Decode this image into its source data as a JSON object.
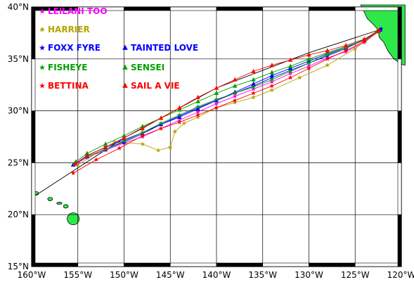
{
  "map": {
    "lon_range": [
      -160,
      -120
    ],
    "lat_range": [
      15,
      40
    ],
    "grid": true,
    "frame_style": "alternating black/white border bars",
    "land_color": "#2ee84a",
    "lat_labels": [
      {
        "lat": 40,
        "text": "40°N"
      },
      {
        "lat": 35,
        "text": "35°N"
      },
      {
        "lat": 30,
        "text": "30°N"
      },
      {
        "lat": 25,
        "text": "25°N"
      },
      {
        "lat": 20,
        "text": "20°N"
      },
      {
        "lat": 15,
        "text": "15°N"
      }
    ],
    "lon_labels": [
      {
        "lon": -160,
        "text": "160°W"
      },
      {
        "lon": -155,
        "text": "155°W"
      },
      {
        "lon": -150,
        "text": "150°W"
      },
      {
        "lon": -145,
        "text": "145°W"
      },
      {
        "lon": -140,
        "text": "140°W"
      },
      {
        "lon": -135,
        "text": "135°W"
      },
      {
        "lon": -130,
        "text": "130°W"
      },
      {
        "lon": -125,
        "text": "125°W"
      },
      {
        "lon": -120,
        "text": "120°W"
      }
    ]
  },
  "legend": [
    {
      "name": "LEILANI TOO",
      "color": "#ff00ff",
      "marker": "star"
    },
    {
      "name": "HARRIER",
      "color": "#b8a200",
      "marker": "star"
    },
    {
      "name": "FOXX FYRE",
      "color": "#0000ff",
      "marker": "star"
    },
    {
      "name": "TAINTED LOVE",
      "color": "#0000ff",
      "marker": "triangle"
    },
    {
      "name": "FISHEYE",
      "color": "#00a000",
      "marker": "star"
    },
    {
      "name": "SENSEI",
      "color": "#00a000",
      "marker": "triangle"
    },
    {
      "name": "BETTINA",
      "color": "#ff0000",
      "marker": "star"
    },
    {
      "name": "SAIL A VIE",
      "color": "#ff0000",
      "marker": "triangle"
    }
  ],
  "great_circle_color": "#000000",
  "chart_data": {
    "type": "scatter",
    "projection": "equirectangular",
    "xlim": [
      -160,
      -120
    ],
    "ylim": [
      15,
      40
    ],
    "great_circle": {
      "lon": [
        -122.4,
        -130,
        -140,
        -150,
        -159.5
      ],
      "lat": [
        37.8,
        35.6,
        32.2,
        27.4,
        21.9
      ]
    },
    "series": [
      {
        "name": "LEILANI TOO",
        "lon": [
          -122.4,
          -124,
          -126,
          -128,
          -130,
          -132,
          -134,
          -136,
          -138,
          -140,
          -142,
          -144,
          -146,
          -148,
          -150,
          -152,
          -154,
          -155
        ],
        "lat": [
          37.7,
          36.6,
          35.7,
          35.1,
          34.3,
          33.6,
          32.8,
          32.1,
          31.4,
          30.7,
          29.9,
          29.1,
          28.3,
          27.5,
          26.9,
          26.2,
          25.5,
          25.0
        ]
      },
      {
        "name": "HARRIER",
        "lon": [
          -122.4,
          -125,
          -128,
          -131,
          -134,
          -136,
          -138,
          -140,
          -142,
          -143.5,
          -144.5,
          -145,
          -146.3,
          -148,
          -151,
          -155
        ],
        "lat": [
          37.7,
          36.0,
          34.4,
          33.2,
          32.0,
          31.3,
          30.8,
          30.3,
          29.4,
          28.8,
          28.0,
          26.5,
          26.2,
          26.8,
          27.0,
          24.8
        ]
      },
      {
        "name": "FOXX FYRE",
        "lon": [
          -122.2,
          -124,
          -126,
          -128,
          -130,
          -132,
          -134,
          -136,
          -138,
          -140,
          -142,
          -144,
          -146,
          -148,
          -150,
          -152,
          -154,
          -155.3
        ],
        "lat": [
          37.9,
          36.9,
          36.0,
          35.3,
          34.6,
          33.9,
          33.2,
          32.4,
          31.7,
          31.0,
          30.3,
          29.5,
          28.7,
          27.9,
          27.2,
          26.5,
          25.7,
          24.9
        ]
      },
      {
        "name": "TAINTED LOVE",
        "lon": [
          -122.3,
          -124,
          -126,
          -128,
          -130,
          -132,
          -134,
          -136,
          -138,
          -140,
          -142,
          -144,
          -146,
          -148,
          -150,
          -152,
          -154,
          -155.5
        ],
        "lat": [
          37.8,
          36.8,
          36.1,
          35.5,
          34.8,
          34.1,
          33.4,
          32.6,
          31.8,
          31.0,
          30.2,
          29.4,
          28.7,
          27.8,
          27.0,
          26.3,
          25.6,
          24.8
        ]
      },
      {
        "name": "FISHEYE",
        "lon": [
          -122.5,
          -124,
          -126,
          -128,
          -130,
          -132,
          -134,
          -136,
          -138,
          -140,
          -142,
          -144,
          -146,
          -148,
          -150,
          -152,
          -154,
          -155.4
        ],
        "lat": [
          37.6,
          36.9,
          36.1,
          35.4,
          34.6,
          33.8,
          33.0,
          32.3,
          31.7,
          31.1,
          30.4,
          29.6,
          28.8,
          27.9,
          27.1,
          26.3,
          25.6,
          24.9
        ]
      },
      {
        "name": "SENSEI",
        "lon": [
          -122.6,
          -124,
          -126,
          -128,
          -130,
          -132,
          -134,
          -136,
          -138,
          -140,
          -142,
          -144,
          -146,
          -148,
          -150,
          -152,
          -154,
          -155.2
        ],
        "lat": [
          37.7,
          36.8,
          36.2,
          35.6,
          35.0,
          34.3,
          33.7,
          33.0,
          32.4,
          31.7,
          30.9,
          30.1,
          29.3,
          28.5,
          27.6,
          26.8,
          25.9,
          25.1
        ]
      },
      {
        "name": "BETTINA",
        "lon": [
          -122.4,
          -124,
          -126,
          -128,
          -130,
          -132,
          -134,
          -136,
          -138,
          -140,
          -142,
          -144,
          -146,
          -148,
          -150.5,
          -153,
          -155.5
        ],
        "lat": [
          37.7,
          36.7,
          35.8,
          35.0,
          34.1,
          33.2,
          32.4,
          31.7,
          31.0,
          30.3,
          29.6,
          28.9,
          28.3,
          27.6,
          26.4,
          25.3,
          24.0
        ]
      },
      {
        "name": "SAIL A VIE",
        "lon": [
          -122.5,
          -124,
          -126,
          -128,
          -130,
          -132,
          -134,
          -136,
          -138,
          -140,
          -142,
          -144,
          -146,
          -148,
          -150,
          -152,
          -154,
          -155.3
        ],
        "lat": [
          37.7,
          36.9,
          36.3,
          35.8,
          35.4,
          34.9,
          34.4,
          33.8,
          33.0,
          32.2,
          31.3,
          30.3,
          29.3,
          28.3,
          27.4,
          26.5,
          25.7,
          24.9
        ]
      }
    ]
  }
}
